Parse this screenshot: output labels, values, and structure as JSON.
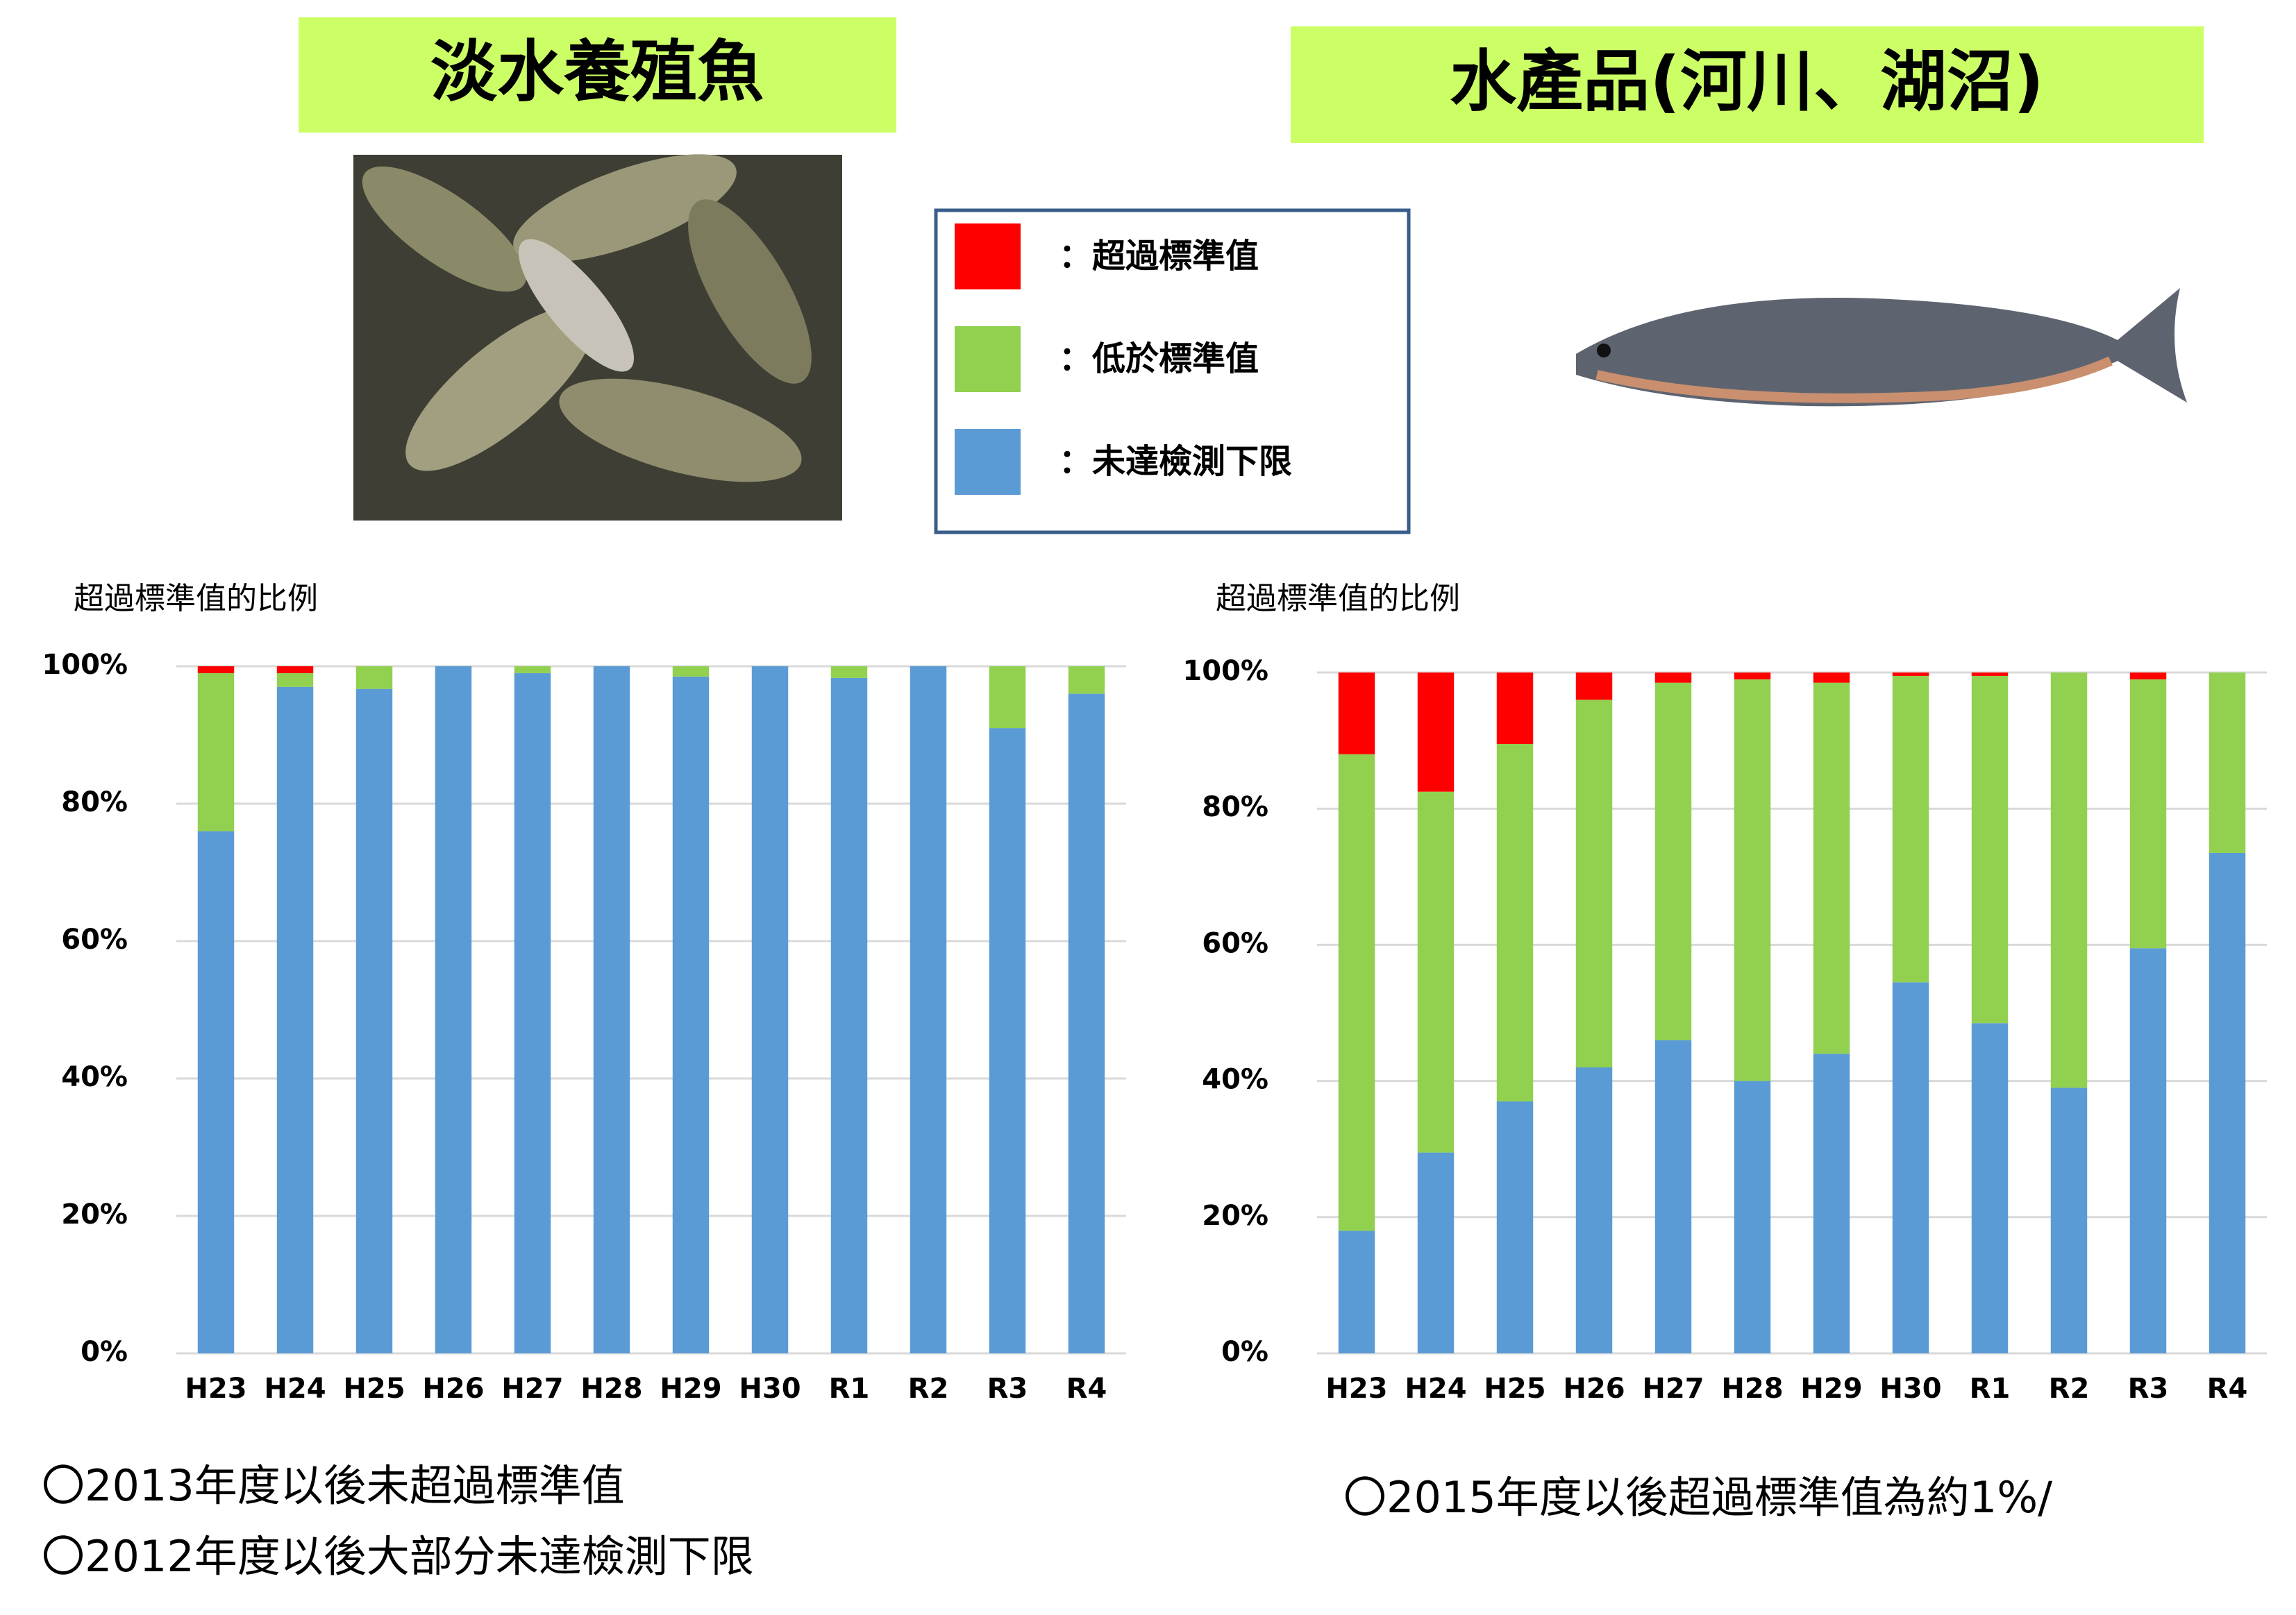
{
  "header": {
    "left_title": "淡水養殖魚",
    "right_title": "水產品(河川、湖沼)"
  },
  "notes": {
    "left": [
      "〇2013年度以後未超過標準值",
      "〇2012年度以後大部分未達檢測下限"
    ],
    "right": [
      "〇2015年度以後超過標準值為約1%/"
    ]
  },
  "chart_data": [
    {
      "type": "bar",
      "stacked": true,
      "y_label": "超過標準值的比例",
      "categories": [
        "H23",
        "H24",
        "H25",
        "H26",
        "H27",
        "H28",
        "H29",
        "H30",
        "R1",
        "R2",
        "R3",
        "R4"
      ],
      "series": [
        {
          "name": "：超過標準值",
          "color": "#ff0000",
          "values": [
            1,
            1,
            0,
            0,
            0,
            0,
            0,
            0,
            0,
            0,
            0,
            0
          ]
        },
        {
          "name": "：低於標準值",
          "color": "#92d050",
          "values": [
            23,
            2,
            3.3,
            0,
            1,
            0,
            1.5,
            0,
            1.7,
            0,
            9,
            4
          ]
        },
        {
          "name": "：未達檢測下限",
          "color": "#5b9bd5",
          "values": [
            76,
            97,
            96.7,
            100,
            99,
            100,
            98.5,
            100,
            98.3,
            100,
            91,
            96
          ]
        }
      ],
      "ylim": [
        0,
        100
      ],
      "yticks": [
        {
          "value": 0,
          "label": "0%"
        },
        {
          "value": 20,
          "label": "20%"
        },
        {
          "value": 40,
          "label": "40%"
        },
        {
          "value": 60,
          "label": "60%"
        },
        {
          "value": 80,
          "label": "80%"
        },
        {
          "value": 100,
          "label": "100%"
        }
      ],
      "grid": true
    },
    {
      "type": "bar",
      "stacked": true,
      "y_label": "超過標準值的比例",
      "categories": [
        "H23",
        "H24",
        "H25",
        "H26",
        "H27",
        "H28",
        "H29",
        "H30",
        "R1",
        "R2",
        "R3",
        "R4"
      ],
      "series": [
        {
          "name": "：超過標準值",
          "color": "#ff0000",
          "values": [
            12,
            17.5,
            10.5,
            4,
            1.5,
            1,
            1.5,
            0.5,
            0.5,
            0,
            1,
            0
          ]
        },
        {
          "name": "：低於標準值",
          "color": "#92d050",
          "values": [
            70,
            53,
            52.5,
            54,
            52.5,
            59,
            54.5,
            45,
            51,
            61,
            39.5,
            26.5
          ]
        },
        {
          "name": "：未達檢測下限",
          "color": "#5b9bd5",
          "values": [
            18,
            29.5,
            37,
            42,
            46,
            40,
            44,
            54.5,
            48.5,
            39,
            59.5,
            73.5
          ]
        }
      ],
      "ylim": [
        0,
        100
      ],
      "yticks": [
        {
          "value": 0,
          "label": "0%"
        },
        {
          "value": 20,
          "label": "20%"
        },
        {
          "value": 40,
          "label": "40%"
        },
        {
          "value": 60,
          "label": "60%"
        },
        {
          "value": 80,
          "label": "80%"
        },
        {
          "value": 100,
          "label": "100%"
        }
      ],
      "grid": true
    }
  ]
}
